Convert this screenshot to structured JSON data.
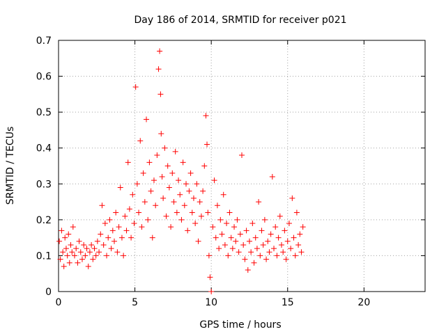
{
  "chart_data": {
    "type": "scatter",
    "title": "Day 186 of 2014, SRMTID for receiver p021",
    "xlabel": "GPS time / hours",
    "ylabel": "SRMTID / TECUs",
    "xlim": [
      0,
      24
    ],
    "ylim": [
      0,
      0.7
    ],
    "xticks": [
      0,
      5,
      10,
      15,
      20
    ],
    "yticks": [
      0,
      0.1,
      0.2,
      0.3,
      0.4,
      0.5,
      0.6,
      0.7
    ],
    "xtick_labels": [
      "0",
      "5",
      "10",
      "15",
      "20"
    ],
    "ytick_labels": [
      "0",
      "0.1",
      "0.2",
      "0.3",
      "0.4",
      "0.5",
      "0.6",
      "0.7"
    ],
    "grid": true,
    "marker": "+",
    "color": "#ff0000",
    "series": [
      {
        "name": "SRMTID",
        "x": [
          0.05,
          0.12,
          0.2,
          0.28,
          0.35,
          0.42,
          0.5,
          0.58,
          0.65,
          0.72,
          0.8,
          0.88,
          0.95,
          1.05,
          1.15,
          1.25,
          1.35,
          1.45,
          1.55,
          1.65,
          1.75,
          1.85,
          1.95,
          2.05,
          2.15,
          2.25,
          2.35,
          2.45,
          2.55,
          2.65,
          2.75,
          2.85,
          2.95,
          3.05,
          3.15,
          3.25,
          3.35,
          3.45,
          3.55,
          3.65,
          3.75,
          3.85,
          3.95,
          4.05,
          4.15,
          4.25,
          4.35,
          4.45,
          4.55,
          4.65,
          4.75,
          4.85,
          4.95,
          5.05,
          5.15,
          5.25,
          5.35,
          5.45,
          5.55,
          5.65,
          5.75,
          5.85,
          5.95,
          6.05,
          6.15,
          6.25,
          6.35,
          6.45,
          6.55,
          6.62,
          6.68,
          6.72,
          6.78,
          6.85,
          6.95,
          7.05,
          7.15,
          7.25,
          7.35,
          7.45,
          7.55,
          7.65,
          7.75,
          7.85,
          7.95,
          8.05,
          8.15,
          8.25,
          8.35,
          8.45,
          8.55,
          8.65,
          8.75,
          8.85,
          8.95,
          9.05,
          9.15,
          9.25,
          9.35,
          9.45,
          9.55,
          9.65,
          9.72,
          9.78,
          9.85,
          9.92,
          10.0,
          10.1,
          10.2,
          10.3,
          10.4,
          10.5,
          10.6,
          10.7,
          10.8,
          10.9,
          11.0,
          11.1,
          11.2,
          11.3,
          11.4,
          11.5,
          11.6,
          11.7,
          11.8,
          11.9,
          12.0,
          12.1,
          12.2,
          12.3,
          12.4,
          12.5,
          12.6,
          12.7,
          12.8,
          12.9,
          13.0,
          13.1,
          13.2,
          13.3,
          13.4,
          13.5,
          13.6,
          13.7,
          13.8,
          13.9,
          14.0,
          14.1,
          14.2,
          14.3,
          14.4,
          14.5,
          14.6,
          14.7,
          14.8,
          14.9,
          15.0,
          15.1,
          15.2,
          15.3,
          15.4,
          15.5,
          15.6,
          15.7,
          15.8,
          15.9,
          16.0
        ],
        "y": [
          0.14,
          0.09,
          0.17,
          0.11,
          0.07,
          0.15,
          0.12,
          0.1,
          0.16,
          0.08,
          0.13,
          0.11,
          0.18,
          0.1,
          0.12,
          0.08,
          0.14,
          0.11,
          0.09,
          0.13,
          0.1,
          0.12,
          0.07,
          0.11,
          0.13,
          0.09,
          0.12,
          0.1,
          0.14,
          0.11,
          0.16,
          0.24,
          0.13,
          0.19,
          0.1,
          0.15,
          0.2,
          0.12,
          0.17,
          0.14,
          0.22,
          0.11,
          0.18,
          0.29,
          0.15,
          0.1,
          0.21,
          0.17,
          0.36,
          0.23,
          0.15,
          0.27,
          0.19,
          0.57,
          0.3,
          0.22,
          0.42,
          0.18,
          0.33,
          0.25,
          0.48,
          0.2,
          0.36,
          0.28,
          0.15,
          0.31,
          0.24,
          0.38,
          0.62,
          0.67,
          0.55,
          0.44,
          0.32,
          0.26,
          0.4,
          0.21,
          0.35,
          0.29,
          0.18,
          0.33,
          0.25,
          0.39,
          0.22,
          0.31,
          0.27,
          0.2,
          0.36,
          0.24,
          0.3,
          0.17,
          0.28,
          0.33,
          0.22,
          0.26,
          0.19,
          0.3,
          0.14,
          0.25,
          0.21,
          0.28,
          0.35,
          0.49,
          0.41,
          0.22,
          0.1,
          0.04,
          0.0,
          0.18,
          0.31,
          0.15,
          0.24,
          0.12,
          0.2,
          0.16,
          0.27,
          0.13,
          0.19,
          0.1,
          0.22,
          0.15,
          0.12,
          0.18,
          0.14,
          0.2,
          0.11,
          0.16,
          0.38,
          0.13,
          0.09,
          0.17,
          0.06,
          0.14,
          0.11,
          0.19,
          0.08,
          0.15,
          0.12,
          0.25,
          0.1,
          0.17,
          0.13,
          0.2,
          0.09,
          0.14,
          0.11,
          0.16,
          0.32,
          0.12,
          0.18,
          0.1,
          0.15,
          0.21,
          0.13,
          0.11,
          0.17,
          0.09,
          0.14,
          0.19,
          0.12,
          0.26,
          0.15,
          0.1,
          0.22,
          0.13,
          0.16,
          0.11,
          0.18
        ]
      }
    ]
  }
}
